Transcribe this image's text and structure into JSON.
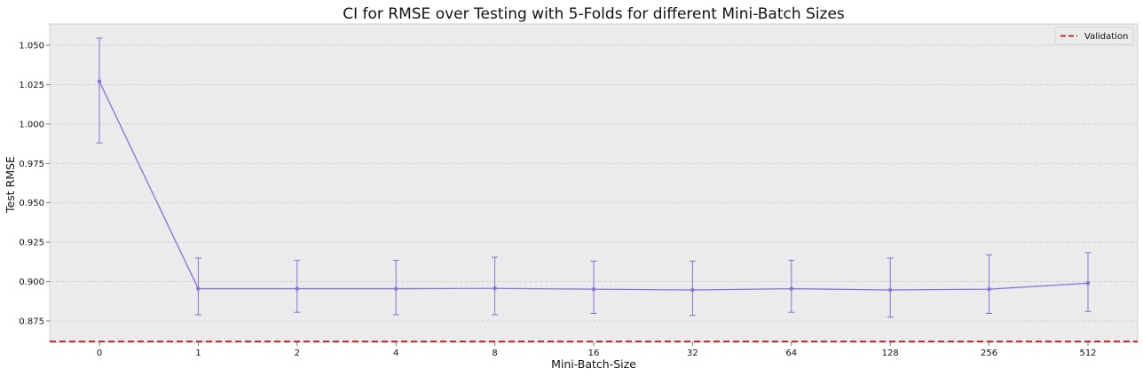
{
  "chart_data": {
    "type": "line",
    "title": "CI for RMSE over Testing with 5-Folds for different Mini-Batch Sizes",
    "xlabel": "Mini-Batch-Size",
    "ylabel": "Test RMSE",
    "categories": [
      "0",
      "1",
      "2",
      "4",
      "8",
      "16",
      "32",
      "64",
      "128",
      "256",
      "512"
    ],
    "ylim": [
      0.8615,
      1.0635
    ],
    "yticks": [
      "0.875",
      "0.900",
      "0.925",
      "0.950",
      "0.975",
      "1.000",
      "1.025",
      "1.050"
    ],
    "series": [
      {
        "values": [
          1.027,
          0.8955,
          0.8955,
          0.8955,
          0.8957,
          0.8952,
          0.8947,
          0.8955,
          0.8947,
          0.8952,
          0.899
        ],
        "ci_low": [
          0.988,
          0.879,
          0.8805,
          0.879,
          0.879,
          0.8798,
          0.8785,
          0.8805,
          0.8775,
          0.8798,
          0.881
        ],
        "ci_high": [
          1.0545,
          0.915,
          0.9135,
          0.9135,
          0.9155,
          0.913,
          0.913,
          0.9135,
          0.915,
          0.917,
          0.9185
        ],
        "color": "#8a6fdc"
      }
    ],
    "reference_line": {
      "name": "Validation",
      "value": 0.862,
      "color": "#b31b1b",
      "style": "dashed"
    },
    "legend": {
      "position": "top-right",
      "entries": [
        "Validation"
      ]
    },
    "grid": true,
    "background": "#ebebeb"
  }
}
